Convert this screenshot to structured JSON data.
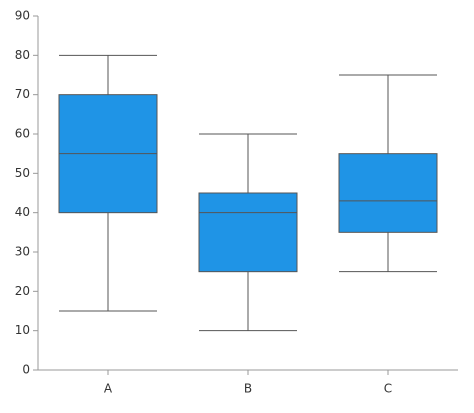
{
  "chart_data": {
    "type": "box",
    "categories": [
      "A",
      "B",
      "C"
    ],
    "min": [
      15,
      10,
      25
    ],
    "q1": [
      40,
      25,
      35
    ],
    "median": [
      55,
      40,
      43
    ],
    "q3": [
      70,
      45,
      55
    ],
    "max": [
      80,
      60,
      75
    ],
    "color": "#1f94e6",
    "ylim": [
      0,
      90
    ],
    "yticks": [
      0,
      10,
      20,
      30,
      40,
      50,
      60,
      70,
      80,
      90
    ],
    "grid": false
  }
}
